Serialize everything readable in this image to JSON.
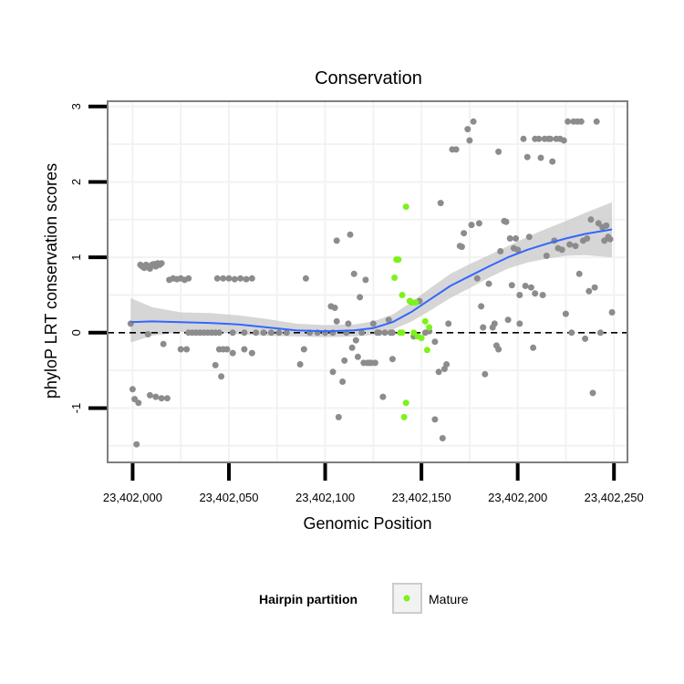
{
  "chart_data": {
    "type": "scatter",
    "title": "Conservation",
    "xlabel": "Genomic Position",
    "ylabel": "phyloP LRT conservation scores",
    "xlim": [
      23401987,
      23402257
    ],
    "ylim": [
      -1.72,
      3.07
    ],
    "x_ticks": [
      23402000,
      23402050,
      23402100,
      23402150,
      23402200,
      23402250
    ],
    "x_tick_labels": [
      "23,402,000",
      "23,402,050",
      "23,402,100",
      "23,402,150",
      "23,402,200",
      "23,402,250"
    ],
    "y_ticks": [
      -1,
      0,
      1,
      2,
      3
    ],
    "y_tick_labels": [
      "-1",
      "0",
      "1",
      "2",
      "3"
    ],
    "reference_line": {
      "y": 0,
      "style": "dashed"
    },
    "legend": {
      "title": "Hairpin partition",
      "entries": [
        {
          "label": "Mature",
          "color": "#7cf21a"
        }
      ]
    },
    "colors": {
      "other_points": "#8c8c8c",
      "mature_points": "#7cf21a",
      "smooth_line": "#3366ff",
      "ribbon": "#c8c8c8",
      "panel_border": "#7f7f7f",
      "grid": "#f2f2f2"
    },
    "series": [
      {
        "name": "Other",
        "points": [
          [
            23401999,
            0.12
          ],
          [
            23402000,
            -0.75
          ],
          [
            23402001,
            -0.88
          ],
          [
            23402002,
            -1.48
          ],
          [
            23402003,
            -0.93
          ],
          [
            23402004,
            0.9
          ],
          [
            23402005,
            0.88
          ],
          [
            23402006,
            0.86
          ],
          [
            23402007,
            0.9
          ],
          [
            23402008,
            0.87
          ],
          [
            23402009,
            0.85
          ],
          [
            23402010,
            0.9
          ],
          [
            23402011,
            0.91
          ],
          [
            23402012,
            0.88
          ],
          [
            23402013,
            0.92
          ],
          [
            23402014,
            0.9
          ],
          [
            23402015,
            0.92
          ],
          [
            23402008,
            -0.02
          ],
          [
            23402009,
            -0.83
          ],
          [
            23402012,
            -0.85
          ],
          [
            23402015,
            -0.87
          ],
          [
            23402018,
            -0.87
          ],
          [
            23402016,
            -0.15
          ],
          [
            23402019,
            0.7
          ],
          [
            23402021,
            0.72
          ],
          [
            23402023,
            0.71
          ],
          [
            23402025,
            0.72
          ],
          [
            23402027,
            0.7
          ],
          [
            23402029,
            0.72
          ],
          [
            23402025,
            -0.22
          ],
          [
            23402028,
            -0.22
          ],
          [
            23402029,
            0.0
          ],
          [
            23402031,
            0.0
          ],
          [
            23402033,
            0.0
          ],
          [
            23402035,
            0.0
          ],
          [
            23402037,
            0.0
          ],
          [
            23402039,
            0.0
          ],
          [
            23402041,
            0.0
          ],
          [
            23402043,
            0.0
          ],
          [
            23402045,
            0.0
          ],
          [
            23402043,
            -0.43
          ],
          [
            23402045,
            -0.22
          ],
          [
            23402046,
            -0.58
          ],
          [
            23402047,
            -0.22
          ],
          [
            23402049,
            -0.22
          ],
          [
            23402052,
            -0.27
          ],
          [
            23402058,
            -0.22
          ],
          [
            23402062,
            -0.27
          ],
          [
            23402044,
            0.72
          ],
          [
            23402047,
            0.72
          ],
          [
            23402050,
            0.72
          ],
          [
            23402053,
            0.71
          ],
          [
            23402056,
            0.72
          ],
          [
            23402059,
            0.71
          ],
          [
            23402062,
            0.72
          ],
          [
            23402052,
            0.0
          ],
          [
            23402058,
            0.0
          ],
          [
            23402064,
            0.0
          ],
          [
            23402068,
            0.0
          ],
          [
            23402072,
            0.0
          ],
          [
            23402076,
            0.0
          ],
          [
            23402080,
            0.0
          ],
          [
            23402087,
            -0.42
          ],
          [
            23402089,
            -0.22
          ],
          [
            23402090,
            0.72
          ],
          [
            23402092,
            0.0
          ],
          [
            23402096,
            0.0
          ],
          [
            23402100,
            0.0
          ],
          [
            23402104,
            0.0
          ],
          [
            23402103,
            0.35
          ],
          [
            23402104,
            -0.52
          ],
          [
            23402105,
            0.33
          ],
          [
            23402106,
            0.15
          ],
          [
            23402106,
            1.22
          ],
          [
            23402107,
            -1.12
          ],
          [
            23402109,
            -0.65
          ],
          [
            23402110,
            -0.37
          ],
          [
            23402111,
            0.0
          ],
          [
            23402112,
            0.12
          ],
          [
            23402113,
            1.3
          ],
          [
            23402114,
            -0.2
          ],
          [
            23402115,
            0.78
          ],
          [
            23402116,
            -0.1
          ],
          [
            23402117,
            -0.32
          ],
          [
            23402118,
            0.47
          ],
          [
            23402119,
            0.0
          ],
          [
            23402120,
            -0.4
          ],
          [
            23402121,
            0.7
          ],
          [
            23402122,
            -0.4
          ],
          [
            23402123,
            -0.4
          ],
          [
            23402124,
            -0.4
          ],
          [
            23402125,
            0.12
          ],
          [
            23402126,
            -0.4
          ],
          [
            23402127,
            0.0
          ],
          [
            23402128,
            0.0
          ],
          [
            23402130,
            -0.85
          ],
          [
            23402131,
            0.0
          ],
          [
            23402133,
            0.17
          ],
          [
            23402134,
            0.0
          ],
          [
            23402135,
            -0.35
          ],
          [
            23402135,
            0.0
          ],
          [
            23402144,
            0.42
          ],
          [
            23402146,
            -0.05
          ],
          [
            23402149,
            0.42
          ],
          [
            23402152,
            0.0
          ],
          [
            23402154,
            0.02
          ],
          [
            23402157,
            -0.12
          ],
          [
            23402157,
            -1.15
          ],
          [
            23402159,
            -0.52
          ],
          [
            23402160,
            1.72
          ],
          [
            23402161,
            -1.4
          ],
          [
            23402162,
            -0.48
          ],
          [
            23402163,
            -0.42
          ],
          [
            23402164,
            0.12
          ],
          [
            23402166,
            2.43
          ],
          [
            23402168,
            2.43
          ],
          [
            23402170,
            1.15
          ],
          [
            23402171,
            1.14
          ],
          [
            23402172,
            1.32
          ],
          [
            23402174,
            2.7
          ],
          [
            23402175,
            2.55
          ],
          [
            23402176,
            1.43
          ],
          [
            23402177,
            2.8
          ],
          [
            23402179,
            0.72
          ],
          [
            23402180,
            1.45
          ],
          [
            23402181,
            0.35
          ],
          [
            23402182,
            0.07
          ],
          [
            23402183,
            -0.55
          ],
          [
            23402185,
            0.65
          ],
          [
            23402187,
            0.07
          ],
          [
            23402188,
            0.12
          ],
          [
            23402189,
            -0.17
          ],
          [
            23402190,
            -0.22
          ],
          [
            23402190,
            2.4
          ],
          [
            23402191,
            1.08
          ],
          [
            23402193,
            1.48
          ],
          [
            23402194,
            1.47
          ],
          [
            23402195,
            0.17
          ],
          [
            23402196,
            1.25
          ],
          [
            23402197,
            0.63
          ],
          [
            23402198,
            1.12
          ],
          [
            23402199,
            1.25
          ],
          [
            23402200,
            1.1
          ],
          [
            23402201,
            0.12
          ],
          [
            23402201,
            0.5
          ],
          [
            23402203,
            2.57
          ],
          [
            23402204,
            0.62
          ],
          [
            23402205,
            2.33
          ],
          [
            23402206,
            1.27
          ],
          [
            23402207,
            0.6
          ],
          [
            23402208,
            -0.2
          ],
          [
            23402209,
            0.52
          ],
          [
            23402209,
            2.57
          ],
          [
            23402211,
            2.57
          ],
          [
            23402212,
            2.32
          ],
          [
            23402213,
            0.5
          ],
          [
            23402214,
            2.57
          ],
          [
            23402215,
            1.02
          ],
          [
            23402216,
            2.57
          ],
          [
            23402217,
            2.57
          ],
          [
            23402218,
            2.27
          ],
          [
            23402219,
            1.22
          ],
          [
            23402220,
            2.57
          ],
          [
            23402221,
            1.12
          ],
          [
            23402222,
            2.57
          ],
          [
            23402223,
            1.1
          ],
          [
            23402224,
            2.55
          ],
          [
            23402225,
            0.25
          ],
          [
            23402226,
            2.8
          ],
          [
            23402227,
            1.17
          ],
          [
            23402228,
            0.0
          ],
          [
            23402229,
            2.8
          ],
          [
            23402230,
            1.15
          ],
          [
            23402231,
            2.8
          ],
          [
            23402232,
            0.78
          ],
          [
            23402233,
            2.8
          ],
          [
            23402234,
            1.22
          ],
          [
            23402235,
            -0.08
          ],
          [
            23402236,
            1.25
          ],
          [
            23402237,
            0.55
          ],
          [
            23402238,
            1.5
          ],
          [
            23402239,
            -0.8
          ],
          [
            23402240,
            0.6
          ],
          [
            23402241,
            2.8
          ],
          [
            23402242,
            1.45
          ],
          [
            23402243,
            0.0
          ],
          [
            23402244,
            1.4
          ],
          [
            23402245,
            1.22
          ],
          [
            23402246,
            1.42
          ],
          [
            23402247,
            1.27
          ],
          [
            23402248,
            1.24
          ],
          [
            23402249,
            0.27
          ]
        ]
      },
      {
        "name": "Mature",
        "points": [
          [
            23402136,
            0.73
          ],
          [
            23402137,
            0.97
          ],
          [
            23402138,
            0.97
          ],
          [
            23402139,
            0.0
          ],
          [
            23402140,
            0.0
          ],
          [
            23402140,
            0.5
          ],
          [
            23402141,
            -1.12
          ],
          [
            23402142,
            -0.93
          ],
          [
            23402142,
            1.67
          ],
          [
            23402144,
            0.42
          ],
          [
            23402145,
            0.4
          ],
          [
            23402146,
            0.0
          ],
          [
            23402147,
            0.4
          ],
          [
            23402148,
            -0.05
          ],
          [
            23402150,
            -0.07
          ],
          [
            23402152,
            0.15
          ],
          [
            23402153,
            -0.23
          ],
          [
            23402154,
            0.07
          ]
        ]
      }
    ],
    "smooth": {
      "x": [
        23401999,
        23402010,
        23402025,
        23402040,
        23402055,
        23402070,
        23402085,
        23402100,
        23402115,
        23402125,
        23402135,
        23402145,
        23402155,
        23402165,
        23402175,
        23402185,
        23402195,
        23402205,
        23402215,
        23402225,
        23402235,
        23402249
      ],
      "y": [
        0.14,
        0.15,
        0.14,
        0.13,
        0.11,
        0.07,
        0.03,
        0.02,
        0.03,
        0.06,
        0.14,
        0.28,
        0.45,
        0.62,
        0.75,
        0.88,
        1.0,
        1.1,
        1.18,
        1.25,
        1.31,
        1.37
      ],
      "lower": [
        -0.13,
        -0.04,
        0.01,
        0.01,
        -0.02,
        -0.04,
        -0.05,
        -0.06,
        -0.05,
        -0.03,
        0.04,
        0.15,
        0.3,
        0.46,
        0.59,
        0.73,
        0.85,
        0.93,
        0.98,
        1.02,
        1.03,
        1.0
      ],
      "upper": [
        0.46,
        0.34,
        0.27,
        0.26,
        0.23,
        0.18,
        0.12,
        0.1,
        0.11,
        0.15,
        0.24,
        0.41,
        0.6,
        0.78,
        0.91,
        1.03,
        1.15,
        1.27,
        1.38,
        1.48,
        1.59,
        1.73
      ]
    }
  }
}
